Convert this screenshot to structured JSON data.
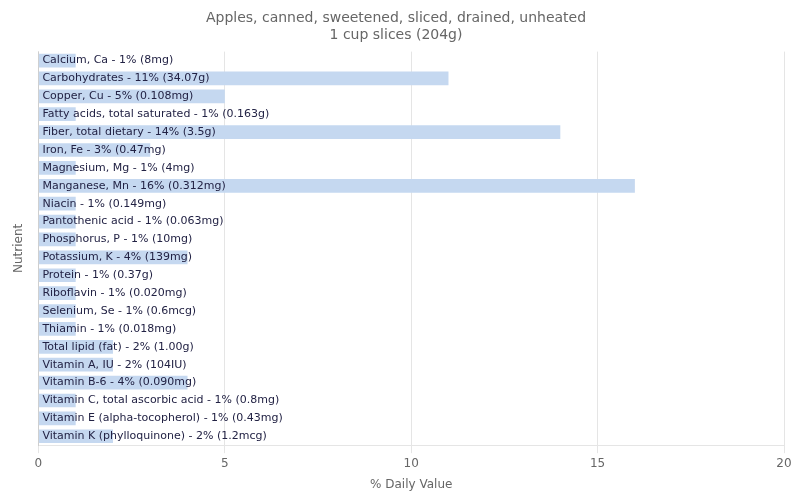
{
  "chart_data": {
    "type": "bar",
    "orientation": "horizontal",
    "title": "Apples, canned, sweetened, sliced, drained, unheated\n1 cup slices (204g)",
    "xlabel": "% Daily Value",
    "ylabel": "Nutrient",
    "categories": [
      "Calcium, Ca - 1% (8mg)",
      "Carbohydrates - 11% (34.07g)",
      "Copper, Cu - 5% (0.108mg)",
      "Fatty acids, total saturated - 1% (0.163g)",
      "Fiber, total dietary - 14% (3.5g)",
      "Iron, Fe - 3% (0.47mg)",
      "Magnesium, Mg - 1% (4mg)",
      "Manganese, Mn - 16% (0.312mg)",
      "Niacin - 1% (0.149mg)",
      "Pantothenic acid - 1% (0.063mg)",
      "Phosphorus, P - 1% (10mg)",
      "Potassium, K - 4% (139mg)",
      "Protein - 1% (0.37g)",
      "Riboflavin - 1% (0.020mg)",
      "Selenium, Se - 1% (0.6mcg)",
      "Thiamin - 1% (0.018mg)",
      "Total lipid (fat) - 2% (1.00g)",
      "Vitamin A, IU - 2% (104IU)",
      "Vitamin B-6 - 4% (0.090mg)",
      "Vitamin C, total ascorbic acid - 1% (0.8mg)",
      "Vitamin E (alpha-tocopherol) - 1% (0.43mg)",
      "Vitamin K (phylloquinone) - 2% (1.2mcg)"
    ],
    "values": [
      1,
      11,
      5,
      1,
      14,
      3,
      1,
      16,
      1,
      1,
      1,
      4,
      1,
      1,
      1,
      1,
      2,
      2,
      4,
      1,
      1,
      2
    ],
    "color": "#c5d8f0",
    "xlim": [
      0,
      20
    ],
    "xticks": [
      0,
      5,
      10,
      15,
      20
    ],
    "grid": true,
    "tick_labels": "x"
  }
}
